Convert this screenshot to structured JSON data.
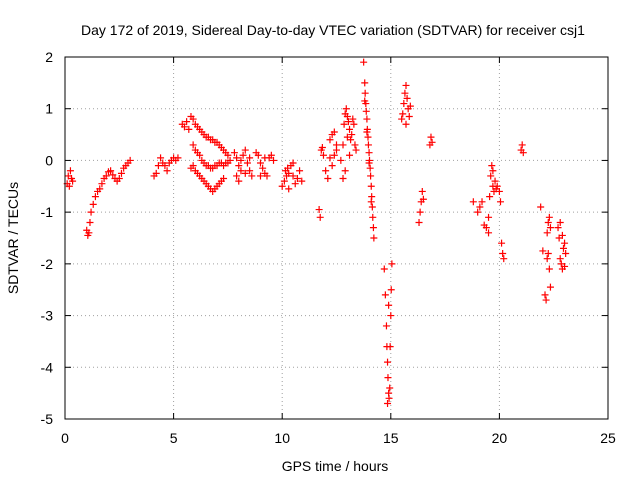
{
  "chart_data": {
    "type": "scatter",
    "title": "Day 172 of 2019, Sidereal Day-to-day VTEC variation (SDTVAR) for receiver csj1",
    "xlabel": "GPS time / hours",
    "ylabel": "SDTVAR / TECUs",
    "xlim": [
      0,
      25
    ],
    "ylim": [
      -5,
      2
    ],
    "xticks": [
      0,
      5,
      10,
      15,
      20,
      25
    ],
    "yticks": [
      -5,
      -4,
      -3,
      -2,
      -1,
      0,
      1,
      2
    ],
    "grid": true,
    "marker": "plus",
    "series_color": "#ff0000",
    "series": [
      {
        "name": "SDTVAR",
        "points": [
          [
            0.1,
            -0.45
          ],
          [
            0.15,
            -0.3
          ],
          [
            0.2,
            -0.5
          ],
          [
            0.25,
            -0.2
          ],
          [
            0.3,
            -0.35
          ],
          [
            0.35,
            -0.4
          ],
          [
            1.0,
            -1.35
          ],
          [
            1.05,
            -1.45
          ],
          [
            1.1,
            -1.4
          ],
          [
            1.15,
            -1.2
          ],
          [
            1.2,
            -1.0
          ],
          [
            1.3,
            -0.85
          ],
          [
            1.4,
            -0.7
          ],
          [
            1.5,
            -0.6
          ],
          [
            1.6,
            -0.55
          ],
          [
            1.7,
            -0.45
          ],
          [
            1.8,
            -0.35
          ],
          [
            1.9,
            -0.3
          ],
          [
            2.0,
            -0.22
          ],
          [
            2.1,
            -0.2
          ],
          [
            2.2,
            -0.28
          ],
          [
            2.3,
            -0.35
          ],
          [
            2.4,
            -0.4
          ],
          [
            2.5,
            -0.35
          ],
          [
            2.6,
            -0.25
          ],
          [
            2.7,
            -0.15
          ],
          [
            2.8,
            -0.1
          ],
          [
            2.9,
            -0.05
          ],
          [
            3.0,
            0.0
          ],
          [
            4.1,
            -0.3
          ],
          [
            4.2,
            -0.25
          ],
          [
            4.3,
            -0.1
          ],
          [
            4.4,
            0.05
          ],
          [
            4.5,
            -0.05
          ],
          [
            4.6,
            -0.1
          ],
          [
            4.7,
            -0.2
          ],
          [
            4.8,
            -0.05
          ],
          [
            4.9,
            0.0
          ],
          [
            5.0,
            0.05
          ],
          [
            5.1,
            0.0
          ],
          [
            5.2,
            0.05
          ],
          [
            5.4,
            0.7
          ],
          [
            5.5,
            0.65
          ],
          [
            5.6,
            0.75
          ],
          [
            5.7,
            0.6
          ],
          [
            5.8,
            0.85
          ],
          [
            5.9,
            0.8
          ],
          [
            6.0,
            0.7
          ],
          [
            6.1,
            0.65
          ],
          [
            6.2,
            0.6
          ],
          [
            6.3,
            0.55
          ],
          [
            6.4,
            0.5
          ],
          [
            6.5,
            0.45
          ],
          [
            6.6,
            0.45
          ],
          [
            6.7,
            0.4
          ],
          [
            6.8,
            0.4
          ],
          [
            6.9,
            0.35
          ],
          [
            7.0,
            0.35
          ],
          [
            7.1,
            0.3
          ],
          [
            7.2,
            0.25
          ],
          [
            7.3,
            0.2
          ],
          [
            7.4,
            0.15
          ],
          [
            7.5,
            0.1
          ],
          [
            7.6,
            0.0
          ],
          [
            5.9,
            0.3
          ],
          [
            6.0,
            0.2
          ],
          [
            6.1,
            0.15
          ],
          [
            6.2,
            0.1
          ],
          [
            6.3,
            0.0
          ],
          [
            6.4,
            -0.05
          ],
          [
            6.5,
            -0.1
          ],
          [
            6.6,
            -0.1
          ],
          [
            6.7,
            -0.15
          ],
          [
            6.8,
            -0.15
          ],
          [
            6.9,
            -0.1
          ],
          [
            7.0,
            -0.1
          ],
          [
            7.1,
            -0.05
          ],
          [
            7.2,
            -0.05
          ],
          [
            7.3,
            -0.1
          ],
          [
            7.4,
            -0.05
          ],
          [
            7.5,
            -0.05
          ],
          [
            5.8,
            -0.15
          ],
          [
            5.9,
            -0.1
          ],
          [
            6.0,
            -0.2
          ],
          [
            6.1,
            -0.25
          ],
          [
            6.2,
            -0.3
          ],
          [
            6.3,
            -0.35
          ],
          [
            6.4,
            -0.4
          ],
          [
            6.5,
            -0.45
          ],
          [
            6.6,
            -0.5
          ],
          [
            6.7,
            -0.55
          ],
          [
            6.8,
            -0.6
          ],
          [
            6.9,
            -0.55
          ],
          [
            7.0,
            -0.5
          ],
          [
            7.1,
            -0.45
          ],
          [
            7.2,
            -0.4
          ],
          [
            7.3,
            -0.35
          ],
          [
            7.8,
            0.15
          ],
          [
            7.9,
            0.05
          ],
          [
            8.0,
            -0.1
          ],
          [
            8.1,
            -0.2
          ],
          [
            8.2,
            0.1
          ],
          [
            8.3,
            0.2
          ],
          [
            8.4,
            -0.05
          ],
          [
            8.5,
            -0.2
          ],
          [
            8.6,
            -0.3
          ],
          [
            7.9,
            -0.3
          ],
          [
            8.0,
            -0.4
          ],
          [
            8.1,
            0.0
          ],
          [
            8.3,
            -0.25
          ],
          [
            8.5,
            0.05
          ],
          [
            8.8,
            0.15
          ],
          [
            8.9,
            0.1
          ],
          [
            9.0,
            -0.05
          ],
          [
            9.1,
            -0.15
          ],
          [
            9.2,
            -0.25
          ],
          [
            9.3,
            -0.3
          ],
          [
            9.4,
            0.05
          ],
          [
            9.5,
            0.1
          ],
          [
            9.6,
            0.0
          ],
          [
            9.0,
            -0.3
          ],
          [
            9.2,
            0.05
          ],
          [
            10.0,
            -0.5
          ],
          [
            10.1,
            -0.4
          ],
          [
            10.15,
            -0.2
          ],
          [
            10.2,
            -0.3
          ],
          [
            10.25,
            -0.15
          ],
          [
            10.3,
            -0.25
          ],
          [
            10.4,
            -0.1
          ],
          [
            10.5,
            -0.3
          ],
          [
            10.6,
            -0.45
          ],
          [
            10.7,
            -0.35
          ],
          [
            10.8,
            -0.2
          ],
          [
            10.9,
            -0.4
          ],
          [
            10.3,
            -0.55
          ],
          [
            10.5,
            -0.05
          ],
          [
            11.7,
            -0.95
          ],
          [
            11.75,
            -1.1
          ],
          [
            11.8,
            0.2
          ],
          [
            11.85,
            0.25
          ],
          [
            11.9,
            0.1
          ],
          [
            12.0,
            -0.2
          ],
          [
            12.1,
            -0.35
          ],
          [
            12.2,
            0.4
          ],
          [
            12.3,
            0.5
          ],
          [
            12.4,
            0.55
          ],
          [
            12.5,
            0.3
          ],
          [
            12.2,
            0.05
          ],
          [
            12.3,
            -0.1
          ],
          [
            12.4,
            0.1
          ],
          [
            12.5,
            0.2
          ],
          [
            12.7,
            0.0
          ],
          [
            12.8,
            0.3
          ],
          [
            12.85,
            0.7
          ],
          [
            12.9,
            0.9
          ],
          [
            12.95,
            1.0
          ],
          [
            13.0,
            0.85
          ],
          [
            13.05,
            0.75
          ],
          [
            13.1,
            0.6
          ],
          [
            13.15,
            0.4
          ],
          [
            13.2,
            0.5
          ],
          [
            13.25,
            0.8
          ],
          [
            13.3,
            0.7
          ],
          [
            13.35,
            0.3
          ],
          [
            13.4,
            0.2
          ],
          [
            13.0,
            0.45
          ],
          [
            12.9,
            -0.2
          ],
          [
            12.8,
            -0.35
          ],
          [
            13.1,
            0.1
          ],
          [
            13.75,
            1.9
          ],
          [
            13.8,
            1.5
          ],
          [
            13.82,
            1.3
          ],
          [
            13.85,
            1.1
          ],
          [
            13.87,
            0.95
          ],
          [
            13.9,
            0.8
          ],
          [
            13.92,
            0.6
          ],
          [
            13.95,
            0.45
          ],
          [
            13.97,
            0.3
          ],
          [
            14.0,
            0.15
          ],
          [
            14.02,
            0.0
          ],
          [
            14.05,
            -0.15
          ],
          [
            14.07,
            -0.3
          ],
          [
            14.1,
            -0.5
          ],
          [
            14.12,
            -0.7
          ],
          [
            14.15,
            -0.9
          ],
          [
            14.17,
            -1.1
          ],
          [
            14.2,
            -1.3
          ],
          [
            14.22,
            -1.5
          ],
          [
            13.8,
            1.15
          ],
          [
            13.9,
            0.55
          ],
          [
            14.0,
            -0.05
          ],
          [
            14.1,
            -0.8
          ],
          [
            14.7,
            -2.1
          ],
          [
            14.75,
            -2.6
          ],
          [
            14.8,
            -3.2
          ],
          [
            14.82,
            -3.6
          ],
          [
            14.85,
            -3.9
          ],
          [
            14.87,
            -4.2
          ],
          [
            14.9,
            -4.5
          ],
          [
            14.92,
            -4.6
          ],
          [
            14.95,
            -4.4
          ],
          [
            14.97,
            -3.6
          ],
          [
            15.0,
            -3.0
          ],
          [
            15.02,
            -2.5
          ],
          [
            15.05,
            -2.0
          ],
          [
            14.85,
            -4.7
          ],
          [
            14.9,
            -2.8
          ],
          [
            15.5,
            0.8
          ],
          [
            15.55,
            0.9
          ],
          [
            15.6,
            1.1
          ],
          [
            15.65,
            1.3
          ],
          [
            15.7,
            1.45
          ],
          [
            15.75,
            1.2
          ],
          [
            15.8,
            1.0
          ],
          [
            15.85,
            0.85
          ],
          [
            15.7,
            0.7
          ],
          [
            15.9,
            1.05
          ],
          [
            16.3,
            -1.2
          ],
          [
            16.35,
            -1.0
          ],
          [
            16.4,
            -0.8
          ],
          [
            16.45,
            -0.6
          ],
          [
            16.5,
            -0.75
          ],
          [
            16.8,
            0.3
          ],
          [
            16.85,
            0.45
          ],
          [
            16.9,
            0.35
          ],
          [
            18.8,
            -0.8
          ],
          [
            19.0,
            -1.0
          ],
          [
            19.1,
            -0.9
          ],
          [
            19.2,
            -0.8
          ],
          [
            19.3,
            -1.25
          ],
          [
            19.4,
            -1.3
          ],
          [
            19.5,
            -1.1
          ],
          [
            19.55,
            -0.7
          ],
          [
            19.6,
            -0.3
          ],
          [
            19.65,
            -0.1
          ],
          [
            19.7,
            -0.5
          ],
          [
            19.75,
            -0.6
          ],
          [
            19.8,
            -0.4
          ],
          [
            19.85,
            -0.55
          ],
          [
            19.9,
            -0.5
          ],
          [
            20.0,
            -0.6
          ],
          [
            20.05,
            -0.8
          ],
          [
            20.1,
            -1.6
          ],
          [
            20.15,
            -1.8
          ],
          [
            20.2,
            -1.9
          ],
          [
            19.5,
            -1.4
          ],
          [
            19.7,
            -0.2
          ],
          [
            21.0,
            0.2
          ],
          [
            21.05,
            0.3
          ],
          [
            21.1,
            0.15
          ],
          [
            21.9,
            -0.9
          ],
          [
            22.0,
            -1.75
          ],
          [
            22.1,
            -2.6
          ],
          [
            22.15,
            -2.7
          ],
          [
            22.2,
            -1.4
          ],
          [
            22.25,
            -1.2
          ],
          [
            22.3,
            -1.1
          ],
          [
            22.35,
            -1.3
          ],
          [
            22.2,
            -1.9
          ],
          [
            22.3,
            -2.1
          ],
          [
            22.35,
            -2.45
          ],
          [
            22.25,
            -1.8
          ],
          [
            22.7,
            -1.3
          ],
          [
            22.75,
            -1.5
          ],
          [
            22.8,
            -1.9
          ],
          [
            22.85,
            -2.0
          ],
          [
            22.9,
            -2.1
          ],
          [
            22.95,
            -1.7
          ],
          [
            23.0,
            -1.6
          ],
          [
            23.05,
            -1.8
          ],
          [
            22.8,
            -1.2
          ],
          [
            22.9,
            -1.45
          ],
          [
            23.0,
            -2.05
          ]
        ]
      }
    ]
  }
}
